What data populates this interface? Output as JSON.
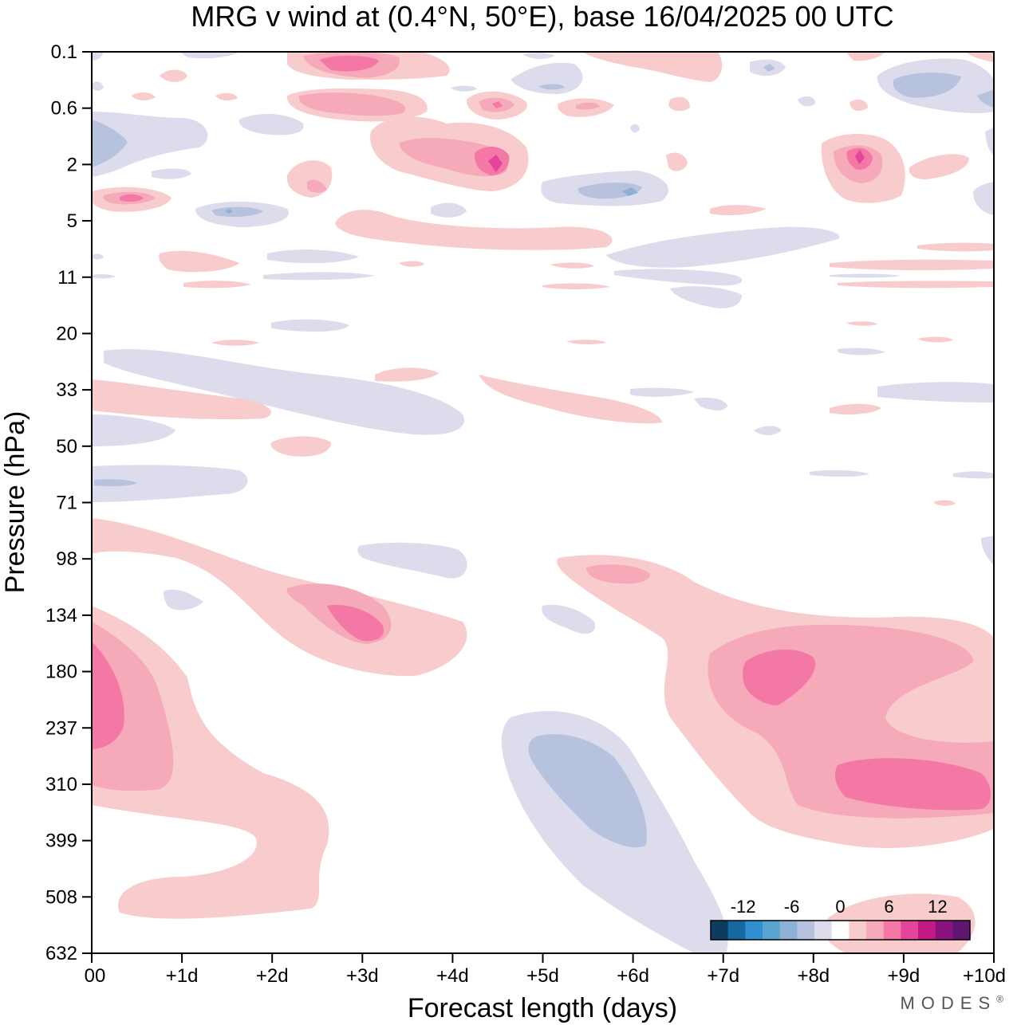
{
  "chart_data": {
    "type": "heatmap",
    "title": "MRG v wind at (0.4°N, 50°E),  base 16/04/2025  00 UTC",
    "xlabel": "Forecast length (days)",
    "ylabel": "Pressure (hPa)",
    "x_ticks": [
      "00",
      "+1d",
      "+2d",
      "+3d",
      "+4d",
      "+5d",
      "+6d",
      "+7d",
      "+8d",
      "+9d",
      "+10d"
    ],
    "y_ticks": [
      "0.1",
      "0.6",
      "2",
      "5",
      "11",
      "20",
      "33",
      "50",
      "71",
      "98",
      "134",
      "180",
      "237",
      "310",
      "399",
      "508",
      "632"
    ],
    "xlim": [
      0,
      10
    ],
    "y_axis": "pressure, inverted, non-linear spacing",
    "colorbar": {
      "tick_labels": [
        "-12",
        "-6",
        "0",
        "6",
        "12"
      ],
      "levels": [
        -16,
        -14,
        -12,
        -10,
        -8,
        -6,
        -4,
        -2,
        2,
        4,
        6,
        8,
        10,
        12,
        14,
        16
      ],
      "colors": [
        "#0d3d5e",
        "#1668a0",
        "#2f8fcf",
        "#5aa4d2",
        "#8fb0d6",
        "#b6c2de",
        "#dcdcec",
        "#ffffff",
        "#f8cccc",
        "#f6a9b8",
        "#f378a6",
        "#e4449a",
        "#c21a84",
        "#8a127e",
        "#5e1670"
      ]
    },
    "features": [
      {
        "sign": "positive",
        "level": 2,
        "x": [
          0.0,
          2.5
        ],
        "pressure": [
          134,
          600
        ],
        "note": "lower-left pink lobe"
      },
      {
        "sign": "positive",
        "level": 8,
        "x": [
          0.0,
          0.4
        ],
        "pressure": [
          180,
          250
        ],
        "note": "lower-left core"
      },
      {
        "sign": "positive",
        "level": 2,
        "x": [
          2.0,
          4.3
        ],
        "pressure": [
          110,
          180
        ],
        "note": "mid pink lobe"
      },
      {
        "sign": "positive",
        "level": 6,
        "x": [
          2.3,
          3.3
        ],
        "pressure": [
          120,
          160
        ],
        "note": "mid pink core"
      },
      {
        "sign": "negative",
        "level": -4,
        "x": [
          4.5,
          6.8
        ],
        "pressure": [
          237,
          632
        ],
        "note": "lower-middle blue lobe"
      },
      {
        "sign": "positive",
        "level": 2,
        "x": [
          5.2,
          10.0
        ],
        "pressure": [
          98,
          420
        ],
        "note": "lower-right pink lobe"
      },
      {
        "sign": "positive",
        "level": 8,
        "x": [
          7.2,
          8.1
        ],
        "pressure": [
          160,
          210
        ],
        "note": "lower-right upper core"
      },
      {
        "sign": "positive",
        "level": 8,
        "x": [
          8.3,
          10.0
        ],
        "pressure": [
          270,
          340
        ],
        "note": "lower-right lower core"
      },
      {
        "sign": "positive",
        "level": 10,
        "x": [
          4.3,
          4.8
        ],
        "pressure": [
          1.7,
          2.6
        ],
        "note": "upper pink core"
      },
      {
        "sign": "positive",
        "level": 10,
        "x": [
          8.3,
          8.7
        ],
        "pressure": [
          1.6,
          2.4
        ],
        "note": "upper right pink core"
      },
      {
        "sign": "negative",
        "level": -4,
        "x": [
          5.6,
          6.7
        ],
        "pressure": [
          2.8,
          4.2
        ],
        "note": "upper blue patch"
      }
    ]
  },
  "brand": "MODES",
  "brand_mark": "®"
}
